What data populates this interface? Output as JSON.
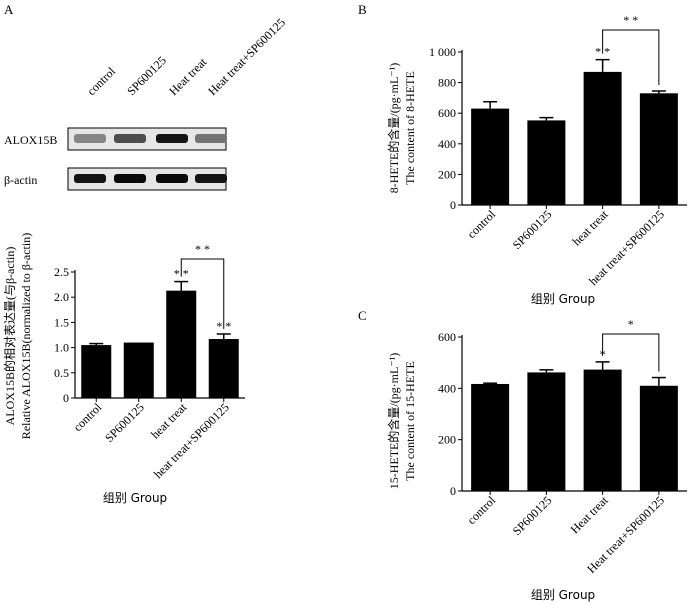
{
  "panels": {
    "a": "A",
    "b": "B",
    "c": "C"
  },
  "blot": {
    "lanes": [
      "control",
      "SP600125",
      "Heat treat",
      "Heat treat+SP600125"
    ],
    "rows": [
      {
        "label": "ALOX15B",
        "intensity": [
          0.35,
          0.65,
          0.95,
          0.45
        ]
      },
      {
        "label": "β-actin",
        "intensity": [
          0.95,
          1.0,
          1.0,
          0.95
        ]
      }
    ]
  },
  "chart_data": [
    {
      "id": "panel-a",
      "type": "bar",
      "categories": [
        "control",
        "SP600125",
        "heat treat",
        "heat treat+SP600125"
      ],
      "values": [
        1.05,
        1.1,
        2.13,
        1.17
      ],
      "errors": [
        0.03,
        0.0,
        0.18,
        0.1
      ],
      "ylim": [
        0,
        2.5
      ],
      "yticks": [
        "0",
        "0.5",
        "1.0",
        "1.5",
        "2.0",
        "2.5"
      ],
      "ylabel_cn": "ALOX15B的相对表达量(与β-actin)",
      "ylabel_en": "Relative ALOX15B(normalized to β-actin)",
      "xlabel": "组别 Group",
      "bar_marks": [
        "",
        "",
        "* *",
        "* *"
      ],
      "bracket": {
        "from": 2,
        "to": 3,
        "label": "* *"
      }
    },
    {
      "id": "panel-b",
      "type": "bar",
      "categories": [
        "control",
        "SP600125",
        "heat treat",
        "heat treat+SP600125"
      ],
      "values": [
        630,
        553,
        870,
        730
      ],
      "errors": [
        45,
        18,
        80,
        15
      ],
      "ylim": [
        0,
        1000
      ],
      "yticks": [
        "0",
        "200",
        "400",
        "600",
        "800",
        "1 000"
      ],
      "ylabel_cn": "8-HETE的含量/(pg·mL⁻¹)",
      "ylabel_en": "The content of 8-HETE",
      "xlabel": "组别 Group",
      "bar_marks": [
        "",
        "",
        "* *",
        ""
      ],
      "bracket": {
        "from": 2,
        "to": 3,
        "label": "* *"
      }
    },
    {
      "id": "panel-c",
      "type": "bar",
      "categories": [
        "control",
        "SP600125",
        "Heat treat",
        "Heat treat+SP600125"
      ],
      "values": [
        417,
        462,
        473,
        410
      ],
      "errors": [
        3,
        10,
        30,
        32
      ],
      "ylim": [
        0,
        600
      ],
      "yticks": [
        "0",
        "200",
        "400",
        "600"
      ],
      "ylabel_cn": "15-HETE的含量/(pg·mL⁻¹)",
      "ylabel_en": "The content of 15-HETE",
      "xlabel": "组别 Group",
      "bar_marks": [
        "",
        "",
        "*",
        ""
      ],
      "bracket": {
        "from": 2,
        "to": 3,
        "label": "*"
      }
    }
  ]
}
